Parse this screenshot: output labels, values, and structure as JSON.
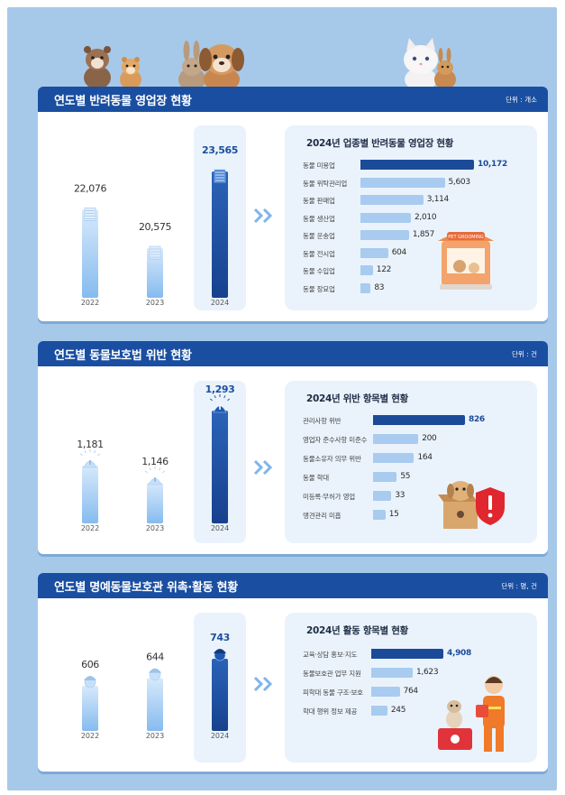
{
  "colors": {
    "background": "#a6c9ea",
    "header": "#1a4ea0",
    "highlight_bar": "#1b4a99",
    "light_bar": "#a8cbef",
    "column_light": "#86bbef",
    "column_dark": "#17418d"
  },
  "chart_data": [
    {
      "type": "bar",
      "title": "연도별 반려동물 영업장 현황",
      "unit": "단위 : 개소",
      "categories": [
        "2022",
        "2023",
        "2024"
      ],
      "values": [
        "22,076",
        "20,575",
        "23,565"
      ],
      "numeric_values": [
        22076,
        20575,
        23565
      ],
      "highlight": "2024",
      "icon": "building-icon"
    },
    {
      "type": "bar",
      "orientation": "horizontal",
      "title": "2024년 업종별 반려동물 영업장 현황",
      "categories": [
        "동물 미용업",
        "동물 위탁관리업",
        "동물 판매업",
        "동물 생산업",
        "동물 운송업",
        "동물 전시업",
        "동물 수입업",
        "동물 장묘업"
      ],
      "values": [
        "10,172",
        "5,603",
        "3,114",
        "2,010",
        "1,857",
        "604",
        "122",
        "83"
      ],
      "numeric_values": [
        10172,
        5603,
        3114,
        2010,
        1857,
        604,
        122,
        83
      ]
    },
    {
      "type": "bar",
      "title": "연도별 동물보호법 위반 현황",
      "unit": "단위 : 건",
      "categories": [
        "2022",
        "2023",
        "2024"
      ],
      "values": [
        "1,181",
        "1,146",
        "1,293"
      ],
      "numeric_values": [
        1181,
        1146,
        1293
      ],
      "highlight": "2024",
      "icon": "alarm-icon"
    },
    {
      "type": "bar",
      "orientation": "horizontal",
      "title": "2024년 위반 항목별 현황",
      "categories": [
        "관리사항 위반",
        "영업자 준수사항 미준수",
        "동물소유자 의무 위반",
        "동물 학대",
        "미등록·무허가 영업",
        "맹견관리 미흡"
      ],
      "values": [
        "826",
        "200",
        "164",
        "55",
        "33",
        "15"
      ],
      "numeric_values": [
        826,
        200,
        164,
        55,
        33,
        15
      ]
    },
    {
      "type": "bar",
      "title": "연도별 명예동물보호관 위촉·활동 현황",
      "unit": "단위 : 명, 건",
      "categories": [
        "2022",
        "2023",
        "2024"
      ],
      "values": [
        "606",
        "644",
        "743"
      ],
      "numeric_values": [
        606,
        644,
        743
      ],
      "highlight": "2024",
      "icon": "person-icon"
    },
    {
      "type": "bar",
      "orientation": "horizontal",
      "title": "2024년 활동 항목별 현황",
      "categories": [
        "교육·상담 홍보·지도",
        "동물보호관 업무 지원",
        "피학대 동물 구조·보호",
        "학대 행위 정보 제공"
      ],
      "values": [
        "4,908",
        "1,623",
        "764",
        "245"
      ],
      "numeric_values": [
        4908,
        1623,
        764,
        245
      ]
    }
  ]
}
